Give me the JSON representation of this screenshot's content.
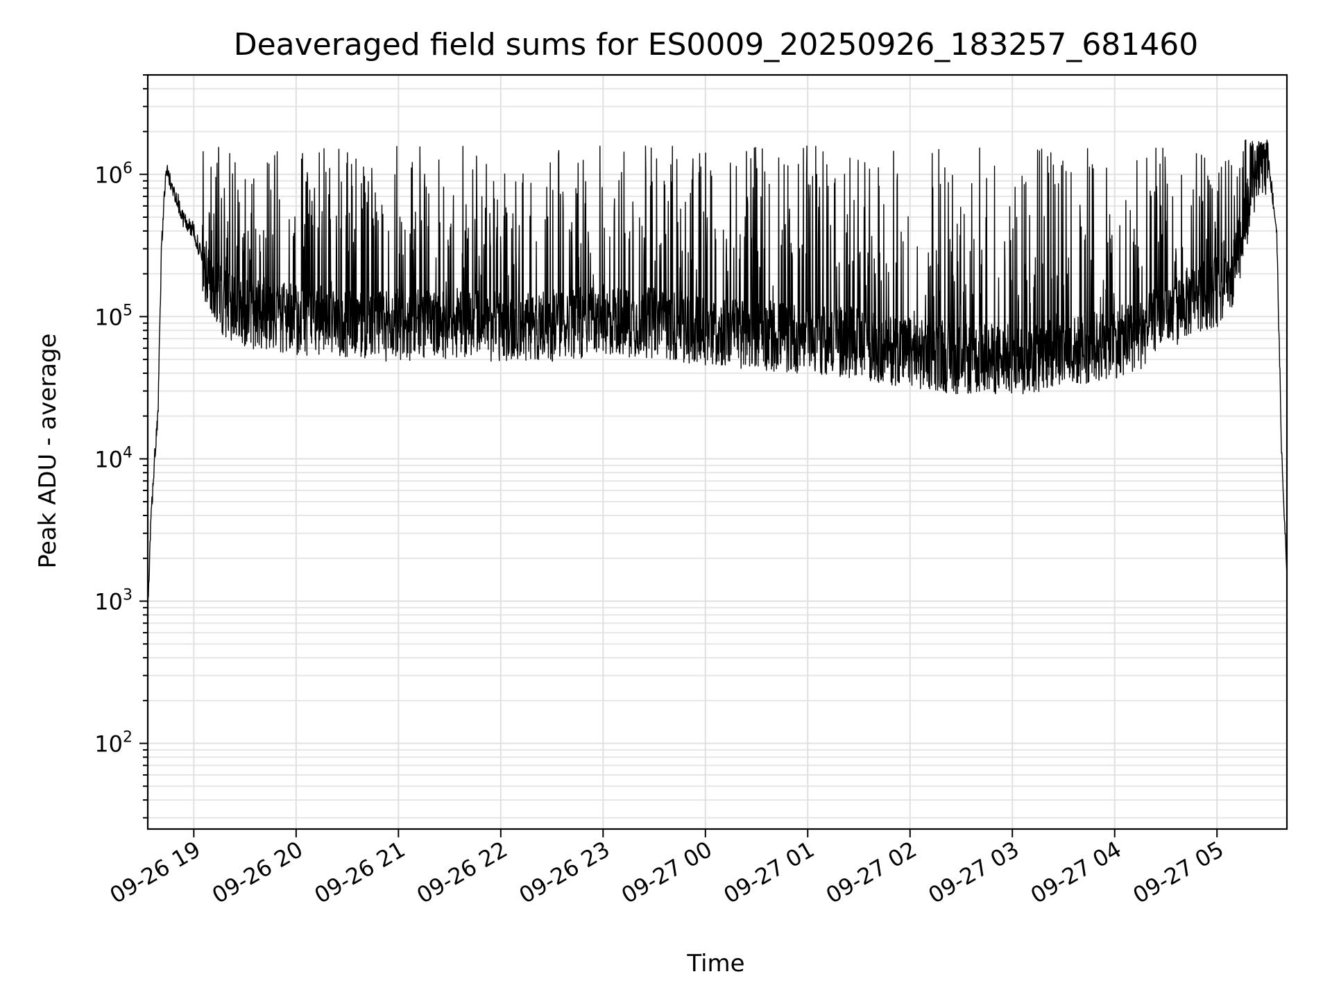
{
  "chart_data": {
    "type": "line",
    "title": "Deaveraged field sums for ES0009_20250926_183257_681460",
    "xlabel": "Time",
    "ylabel": "Peak ADU - average",
    "yscale": "log",
    "ylim": [
      25,
      5000000
    ],
    "xlim": [
      "2025-09-26 18:33",
      "2025-09-27 05:41"
    ],
    "grid": true,
    "line_color": "#000000",
    "grid_color": "#e0e0e0",
    "x_tick_labels": [
      "09-26 19",
      "09-26 20",
      "09-26 21",
      "09-26 22",
      "09-26 23",
      "09-27 00",
      "09-27 01",
      "09-27 02",
      "09-27 03",
      "09-27 04",
      "09-27 05"
    ],
    "x_tick_values": [
      "2025-09-26 19:00",
      "2025-09-26 20:00",
      "2025-09-26 21:00",
      "2025-09-26 22:00",
      "2025-09-26 23:00",
      "2025-09-27 00:00",
      "2025-09-27 01:00",
      "2025-09-27 02:00",
      "2025-09-27 03:00",
      "2025-09-27 04:00",
      "2025-09-27 05:00"
    ],
    "y_ticks": [
      {
        "value": 100,
        "base": "10",
        "exp": "2"
      },
      {
        "value": 1000,
        "base": "10",
        "exp": "3"
      },
      {
        "value": 10000,
        "base": "10",
        "exp": "4"
      },
      {
        "value": 100000,
        "base": "10",
        "exp": "5"
      },
      {
        "value": 1000000,
        "base": "10",
        "exp": "6"
      }
    ],
    "series": [
      {
        "x": [
          "2025-09-26 18:33",
          "2025-09-26 18:35",
          "2025-09-26 18:37",
          "2025-09-26 18:39",
          "2025-09-26 18:41",
          "2025-09-26 18:43",
          "2025-09-26 18:44",
          "2025-09-26 18:45",
          "2025-09-26 18:47",
          "2025-09-26 18:50",
          "2025-09-26 18:53",
          "2025-09-26 18:56",
          "2025-09-26 19:00",
          "2025-09-26 19:05",
          "2025-09-26 19:10",
          "2025-09-26 19:20",
          "2025-09-26 19:40",
          "2025-09-26 20:00",
          "2025-09-26 20:30",
          "2025-09-26 21:00",
          "2025-09-26 21:30",
          "2025-09-26 22:00",
          "2025-09-26 22:30",
          "2025-09-26 23:00",
          "2025-09-26 23:30",
          "2025-09-27 00:00",
          "2025-09-27 00:30",
          "2025-09-27 01:00",
          "2025-09-27 01:30",
          "2025-09-27 02:00",
          "2025-09-27 02:30",
          "2025-09-27 03:00",
          "2025-09-27 03:30",
          "2025-09-27 04:00",
          "2025-09-27 04:15",
          "2025-09-27 04:30",
          "2025-09-27 04:40",
          "2025-09-27 04:50",
          "2025-09-27 05:00",
          "2025-09-27 05:10",
          "2025-09-27 05:15",
          "2025-09-27 05:20",
          "2025-09-27 05:25",
          "2025-09-27 05:30",
          "2025-09-27 05:35",
          "2025-09-27 05:38",
          "2025-09-27 05:41"
        ],
        "y": [
          800,
          4000,
          10000,
          20000,
          300000,
          800000,
          1100000,
          1000000,
          800000,
          700000,
          500000,
          450000,
          400000,
          250000,
          150000,
          120000,
          100000,
          95000,
          90000,
          85000,
          90000,
          85000,
          85000,
          95000,
          90000,
          80000,
          75000,
          70000,
          65000,
          55000,
          50000,
          50000,
          55000,
          65000,
          75000,
          100000,
          120000,
          140000,
          150000,
          200000,
          400000,
          650000,
          1200000,
          1300000,
          400000,
          10000,
          1500
        ]
      }
    ]
  }
}
